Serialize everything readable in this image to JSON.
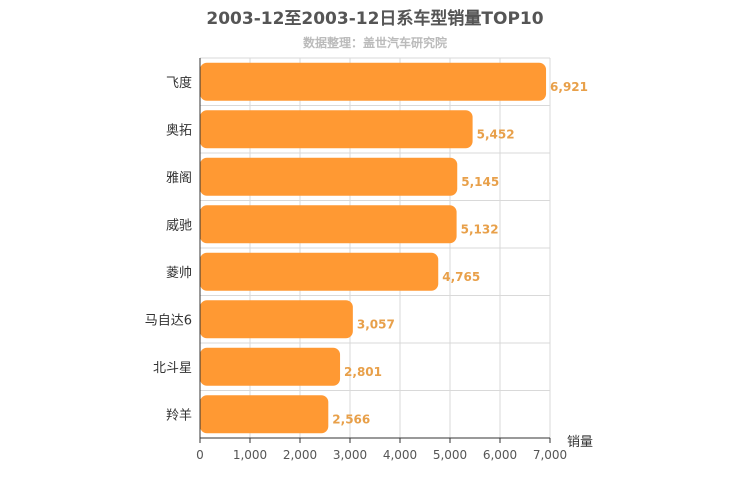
{
  "chart_data": {
    "type": "bar",
    "orientation": "horizontal",
    "title": "2003-12至2003-12日系车型销量TOP10",
    "subtitle": "数据整理：盖世汽车研究院",
    "categories": [
      "飞度",
      "奥拓",
      "雅阁",
      "威驰",
      "菱帅",
      "马自达6",
      "北斗星",
      "羚羊"
    ],
    "values": [
      6921,
      5452,
      5145,
      5132,
      4765,
      3057,
      2801,
      2566
    ],
    "value_labels": [
      "6,921",
      "5,452",
      "5,145",
      "5,132",
      "4,765",
      "3,057",
      "2,801",
      "2,566"
    ],
    "xlabel": "销量",
    "xlim": [
      0,
      7000
    ],
    "xticks": [
      0,
      1000,
      2000,
      3000,
      4000,
      5000,
      6000,
      7000
    ],
    "xtick_labels": [
      "0",
      "1,000",
      "2,000",
      "3,000",
      "4,000",
      "5,000",
      "6,000",
      "7,000"
    ],
    "grid": true,
    "bar_color": "#ff9933"
  }
}
